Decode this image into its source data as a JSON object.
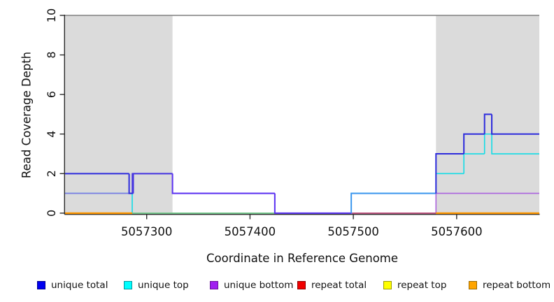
{
  "legend": {
    "items": [
      {
        "label": "unique total",
        "color": "#0000f0",
        "border": "#000090"
      },
      {
        "label": "unique top",
        "color": "#00ffff",
        "border": "#00979e"
      },
      {
        "label": "unique bottom",
        "color": "#a020f0",
        "border": "#6a1499"
      },
      {
        "label": "repeat total",
        "color": "#f00000",
        "border": "#8f0000"
      },
      {
        "label": "repeat top",
        "color": "#ffff00",
        "border": "#9c9c00"
      },
      {
        "label": "repeat bottom",
        "color": "#ffa500",
        "border": "#9c6a00"
      }
    ]
  },
  "chart_data": {
    "type": "line",
    "subtype": "step-coverage",
    "title": "",
    "xlabel": "Coordinate in Reference Genome",
    "ylabel": "Read Coverage Depth",
    "xlim": [
      5057221,
      5057680
    ],
    "ylim": [
      0,
      10
    ],
    "xticks": [
      5057300,
      5057400,
      5057500,
      5057600
    ],
    "yticks": [
      0,
      2,
      4,
      6,
      8,
      10
    ],
    "grid": false,
    "legend_position": "bottom",
    "repeat_regions": [
      [
        5057221,
        5057325
      ],
      [
        5057580,
        5057680
      ]
    ],
    "region_color": "#dbdbdb",
    "top_border_color": "#7f7f7f",
    "axis_color": "#2b2b2b",
    "series": [
      {
        "name": "unique top",
        "color": "#12dce6",
        "width": 1.6,
        "steps": [
          [
            5057221,
            5057286,
            1
          ],
          [
            5057286,
            5057498,
            0
          ],
          [
            5057498,
            5057580,
            1
          ],
          [
            5057580,
            5057607,
            2
          ],
          [
            5057607,
            5057627,
            3
          ],
          [
            5057627,
            5057634,
            4
          ],
          [
            5057634,
            5057680,
            3
          ]
        ]
      },
      {
        "name": "repeat top",
        "color": "#7fc77f",
        "width": 1.6,
        "steps": [
          [
            5057286,
            5057499,
            0
          ]
        ]
      },
      {
        "name": "unique bottom",
        "color": "#9f54e2",
        "width": 1.6,
        "steps": [
          [
            5057221,
            5057286,
            1,
            "#8177e2"
          ],
          [
            5057286,
            5057325,
            2,
            "#4d3ce0"
          ],
          [
            5057325,
            5057424,
            1,
            "#7a4ae8"
          ],
          [
            5057424,
            5057580,
            0,
            "#8a55e0"
          ],
          [
            5057580,
            5057680,
            1,
            "#ab63dd"
          ]
        ]
      },
      {
        "name": "repeat total",
        "color": "#c44d6e",
        "width": 1.6,
        "steps": [
          [
            5057499,
            5057580,
            0
          ]
        ]
      },
      {
        "name": "unique total",
        "color": "#2d2bdc",
        "width": 2,
        "steps": [
          [
            5057221,
            5057283,
            2
          ],
          [
            5057283,
            5057287,
            1
          ],
          [
            5057287,
            5057325,
            2,
            "#4534e0"
          ],
          [
            5057325,
            5057424,
            1,
            "#5b33f2"
          ],
          [
            5057424,
            5057498,
            0,
            "#5b33f2"
          ],
          [
            5057498,
            5057580,
            1,
            "#3f97ee"
          ],
          [
            5057580,
            5057607,
            3
          ],
          [
            5057607,
            5057627,
            4
          ],
          [
            5057627,
            5057634,
            5
          ],
          [
            5057634,
            5057680,
            4
          ]
        ]
      },
      {
        "name": "repeat bottom",
        "color": "#ff9800",
        "width": 2.4,
        "steps": [
          [
            5057221,
            5057286,
            0
          ],
          [
            5057580,
            5057680,
            0
          ]
        ]
      }
    ]
  }
}
